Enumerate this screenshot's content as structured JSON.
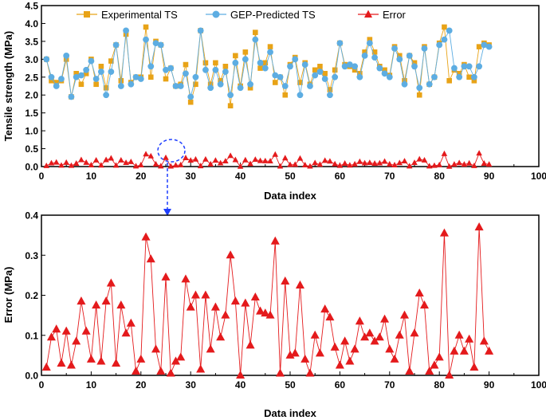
{
  "chart_data": [
    {
      "type": "line",
      "xlabel": "Data index",
      "ylabel": "Tensile strength (MPa)",
      "xlim": [
        0,
        100
      ],
      "ylim": [
        0,
        4.5
      ],
      "xticks": [
        "0",
        "10",
        "20",
        "30",
        "40",
        "50",
        "60",
        "70",
        "80",
        "90",
        "100"
      ],
      "yticks": [
        "0.0",
        "0.5",
        "1.0",
        "1.5",
        "2.0",
        "2.5",
        "3.0",
        "3.5",
        "4.0",
        "4.5"
      ],
      "legend_position": "top",
      "x": [
        1,
        2,
        3,
        4,
        5,
        6,
        7,
        8,
        9,
        10,
        11,
        12,
        13,
        14,
        15,
        16,
        17,
        18,
        19,
        20,
        21,
        22,
        23,
        24,
        25,
        26,
        27,
        28,
        29,
        30,
        31,
        32,
        33,
        34,
        35,
        36,
        37,
        38,
        39,
        40,
        41,
        42,
        43,
        44,
        45,
        46,
        47,
        48,
        49,
        50,
        51,
        52,
        53,
        54,
        55,
        56,
        57,
        58,
        59,
        60,
        61,
        62,
        63,
        64,
        65,
        66,
        67,
        68,
        69,
        70,
        71,
        72,
        73,
        74,
        75,
        76,
        77,
        78,
        79,
        80,
        81,
        82,
        83,
        84,
        85,
        86,
        87,
        88,
        89,
        90
      ],
      "series": [
        {
          "name": "Experimental TS",
          "color": "#E8A317",
          "marker": "square",
          "values": [
            3.0,
            2.4,
            2.35,
            2.4,
            3.0,
            1.95,
            2.6,
            2.3,
            2.6,
            3.0,
            2.3,
            2.8,
            2.2,
            2.95,
            3.4,
            2.4,
            3.7,
            2.35,
            2.5,
            2.5,
            3.9,
            2.5,
            3.5,
            3.4,
            2.45,
            2.75,
            2.25,
            2.3,
            2.85,
            1.8,
            2.3,
            3.8,
            2.9,
            2.3,
            2.9,
            2.4,
            2.8,
            1.7,
            3.1,
            2.25,
            3.2,
            2.2,
            3.75,
            2.75,
            2.9,
            3.35,
            2.35,
            2.5,
            2.0,
            2.85,
            3.05,
            2.35,
            2.9,
            2.3,
            2.7,
            2.8,
            2.6,
            2.15,
            2.7,
            3.45,
            2.85,
            2.8,
            2.7,
            2.6,
            3.2,
            3.55,
            3.2,
            2.8,
            2.7,
            2.55,
            3.35,
            3.1,
            2.4,
            3.1,
            2.9,
            2.0,
            3.35,
            2.3,
            2.5,
            3.45,
            3.9,
            2.4,
            2.7,
            2.6,
            2.85,
            2.5,
            2.4,
            3.35,
            3.45,
            3.4
          ]
        },
        {
          "name": "GEP-Predicted TS",
          "color": "#5DADE2",
          "marker": "circle",
          "values": [
            3.0,
            2.5,
            2.25,
            2.45,
            3.1,
            1.95,
            2.5,
            2.55,
            2.7,
            2.95,
            2.45,
            2.65,
            2.0,
            2.65,
            3.4,
            2.25,
            3.8,
            2.3,
            2.5,
            2.45,
            3.55,
            2.8,
            3.45,
            3.4,
            2.7,
            2.75,
            2.25,
            2.25,
            2.6,
            1.95,
            2.5,
            3.8,
            2.7,
            2.2,
            2.7,
            2.3,
            2.65,
            2.0,
            2.9,
            2.2,
            3.0,
            2.3,
            3.55,
            2.9,
            2.75,
            3.2,
            2.55,
            2.5,
            2.25,
            2.8,
            3.0,
            2.0,
            2.85,
            2.25,
            2.55,
            2.65,
            2.45,
            2.0,
            2.5,
            3.45,
            2.8,
            2.85,
            2.8,
            2.5,
            3.1,
            3.45,
            3.05,
            2.75,
            2.6,
            2.5,
            3.3,
            3.0,
            2.3,
            3.1,
            2.8,
            2.2,
            3.3,
            2.3,
            2.5,
            3.4,
            3.55,
            3.8,
            2.75,
            2.5,
            2.8,
            2.8,
            2.5,
            2.8,
            3.4,
            3.35
          ]
        },
        {
          "name": "Error",
          "color": "#E41A1C",
          "marker": "triangle",
          "values": [
            0.02,
            0.095,
            0.115,
            0.03,
            0.11,
            0.025,
            0.085,
            0.185,
            0.11,
            0.04,
            0.175,
            0.035,
            0.185,
            0.23,
            0.03,
            0.175,
            0.105,
            0.13,
            0.01,
            0.04,
            0.345,
            0.29,
            0.065,
            0.01,
            0.245,
            0.005,
            0.035,
            0.045,
            0.24,
            0.17,
            0.2,
            0.015,
            0.2,
            0.065,
            0.17,
            0.095,
            0.15,
            0.3,
            0.185,
            0.0,
            0.18,
            0.075,
            0.195,
            0.16,
            0.155,
            0.15,
            0.335,
            0.005,
            0.235,
            0.05,
            0.055,
            0.225,
            0.04,
            0.005,
            0.1,
            0.055,
            0.165,
            0.145,
            0.07,
            0.025,
            0.085,
            0.035,
            0.065,
            0.135,
            0.095,
            0.105,
            0.085,
            0.095,
            0.14,
            0.065,
            0.04,
            0.1,
            0.15,
            0.01,
            0.105,
            0.205,
            0.175,
            0.01,
            0.025,
            0.045,
            0.355,
            0.0,
            0.06,
            0.1,
            0.06,
            0.09,
            0.02,
            0.37,
            0.085,
            0.06
          ]
        }
      ]
    },
    {
      "type": "line",
      "xlabel": "Data index",
      "ylabel": "Error (MPa)",
      "xlim": [
        0,
        100
      ],
      "ylim": [
        0,
        0.4
      ],
      "xticks": [
        "0",
        "10",
        "20",
        "30",
        "40",
        "50",
        "60",
        "70",
        "80",
        "90",
        "100"
      ],
      "yticks": [
        "0.0",
        "0.1",
        "0.2",
        "0.3",
        "0.4"
      ],
      "zoom_of": "Error",
      "annotation": "dashed ellipse around index 25 with arrow pointing to zoomed error plot"
    }
  ]
}
